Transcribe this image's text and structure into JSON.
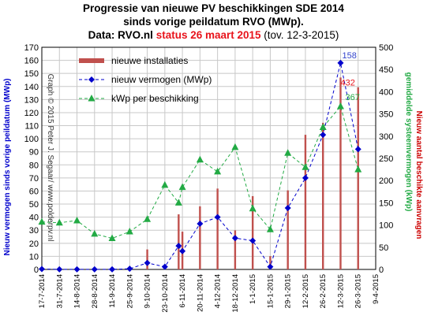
{
  "header": {
    "line1": "Progressie van nieuwe PV beschikkingen  SDE  2014",
    "line2": "sinds vorige peildatum RVO  (MWp).",
    "line3_prefix": "Data: RVO.nl ",
    "line3_status": "status 26 maart 2015",
    "line3_suffix": " (tov. 12-3-2015)"
  },
  "credit": "Graph © 2015 Peter J. Segaar/ www.polderpv.nl",
  "chart_data": {
    "type": "bar",
    "title": "Progressie van nieuwe PV beschikkingen  SDE  2014 sinds vorige peildatum RVO  (MWp).",
    "x_dates": [
      "17-7-2014",
      "31-7-2014",
      "14-8-2014",
      "28-8-2014",
      "11-9-2014",
      "25-9-2014",
      "9-10-2014",
      "23-10-2014",
      "6-11-2014",
      "20-11-2014",
      "4-12-2014",
      "18-12-2014",
      "1-1-2015",
      "15-1-2015",
      "29-1-2015",
      "12-2-2015",
      "26-2-2015",
      "12-3-2015",
      "26-3-2015",
      "9-4-2015"
    ],
    "x_range": [
      "2014-07-17",
      "2015-04-09"
    ],
    "y_left": {
      "label": "Nieuw vermogen sinds vorige peildatum (MWp)",
      "min": 0,
      "max": 170,
      "ticks": [
        0,
        10,
        20,
        30,
        40,
        50,
        60,
        70,
        80,
        90,
        100,
        110,
        120,
        130,
        140,
        150,
        160,
        170
      ]
    },
    "y_right": {
      "label_left": "Nieuw aantal beschikte aanvragen",
      "label_right": "gemiddelde systeemvermogen (kWp)",
      "min": 0,
      "max": 500,
      "ticks": [
        0,
        50,
        100,
        150,
        200,
        250,
        300,
        350,
        400,
        450,
        500
      ]
    },
    "series": [
      {
        "name": "nieuwe installaties",
        "kind": "bar",
        "axis": "right",
        "color": "#c0504d",
        "points": [
          {
            "date": "2014-07-17",
            "value": 2
          },
          {
            "date": "2014-07-31",
            "value": 1
          },
          {
            "date": "2014-08-14",
            "value": 1
          },
          {
            "date": "2014-08-28",
            "value": 1
          },
          {
            "date": "2014-09-11",
            "value": 1
          },
          {
            "date": "2014-09-25",
            "value": 4
          },
          {
            "date": "2014-10-09",
            "value": 45
          },
          {
            "date": "2014-10-23",
            "value": 8
          },
          {
            "date": "2014-11-03",
            "value": 124
          },
          {
            "date": "2014-11-06",
            "value": 85
          },
          {
            "date": "2014-11-20",
            "value": 142
          },
          {
            "date": "2014-12-04",
            "value": 182
          },
          {
            "date": "2014-12-18",
            "value": 88
          },
          {
            "date": "2015-01-01",
            "value": 165
          },
          {
            "date": "2015-01-15",
            "value": 30
          },
          {
            "date": "2015-01-29",
            "value": 178
          },
          {
            "date": "2015-02-12",
            "value": 303
          },
          {
            "date": "2015-02-26",
            "value": 330
          },
          {
            "date": "2015-03-12",
            "value": 432
          },
          {
            "date": "2015-03-26",
            "value": 410
          }
        ]
      },
      {
        "name": "nieuw vermogen (MWp)",
        "kind": "line",
        "axis": "left",
        "color": "#0000cc",
        "points": [
          {
            "date": "2014-07-17",
            "value": 0.3
          },
          {
            "date": "2014-07-31",
            "value": 0.1
          },
          {
            "date": "2014-08-14",
            "value": 0.1
          },
          {
            "date": "2014-08-28",
            "value": 0.1
          },
          {
            "date": "2014-09-11",
            "value": 0.1
          },
          {
            "date": "2014-09-25",
            "value": 0.5
          },
          {
            "date": "2014-10-09",
            "value": 5
          },
          {
            "date": "2014-10-23",
            "value": 2
          },
          {
            "date": "2014-11-03",
            "value": 18
          },
          {
            "date": "2014-11-06",
            "value": 14
          },
          {
            "date": "2014-11-20",
            "value": 35
          },
          {
            "date": "2014-12-04",
            "value": 40
          },
          {
            "date": "2014-12-18",
            "value": 24
          },
          {
            "date": "2015-01-01",
            "value": 22
          },
          {
            "date": "2015-01-15",
            "value": 2
          },
          {
            "date": "2015-01-29",
            "value": 47
          },
          {
            "date": "2015-02-12",
            "value": 70
          },
          {
            "date": "2015-02-26",
            "value": 103
          },
          {
            "date": "2015-03-12",
            "value": 158
          },
          {
            "date": "2015-03-26",
            "value": 92
          }
        ]
      },
      {
        "name": "kWp per beschikking",
        "kind": "line",
        "axis": "right",
        "color": "#22aa44",
        "points": [
          {
            "date": "2014-07-17",
            "value": 107
          },
          {
            "date": "2014-07-31",
            "value": 105
          },
          {
            "date": "2014-08-14",
            "value": 110
          },
          {
            "date": "2014-08-28",
            "value": 80
          },
          {
            "date": "2014-09-11",
            "value": 70
          },
          {
            "date": "2014-09-25",
            "value": 85
          },
          {
            "date": "2014-10-09",
            "value": 113
          },
          {
            "date": "2014-10-23",
            "value": 190
          },
          {
            "date": "2014-11-03",
            "value": 150
          },
          {
            "date": "2014-11-06",
            "value": 185
          },
          {
            "date": "2014-11-20",
            "value": 247
          },
          {
            "date": "2014-12-04",
            "value": 220
          },
          {
            "date": "2014-12-18",
            "value": 275
          },
          {
            "date": "2015-01-01",
            "value": 137
          },
          {
            "date": "2015-01-15",
            "value": 90
          },
          {
            "date": "2015-01-29",
            "value": 262
          },
          {
            "date": "2015-02-12",
            "value": 230
          },
          {
            "date": "2015-02-26",
            "value": 320
          },
          {
            "date": "2015-03-12",
            "value": 367
          },
          {
            "date": "2015-03-26",
            "value": 225
          }
        ]
      }
    ],
    "annotations": [
      {
        "text": "158",
        "series": "nieuw vermogen (MWp)",
        "date": "2015-03-12",
        "color": "#3344cc"
      },
      {
        "text": "432",
        "series": "nieuwe installaties",
        "date": "2015-03-12",
        "color": "#e8131b"
      },
      {
        "text": "367",
        "series": "kWp per beschikking",
        "date": "2015-03-12",
        "color": "#22aa44"
      }
    ],
    "grid": true,
    "legend_position": "top-left"
  }
}
